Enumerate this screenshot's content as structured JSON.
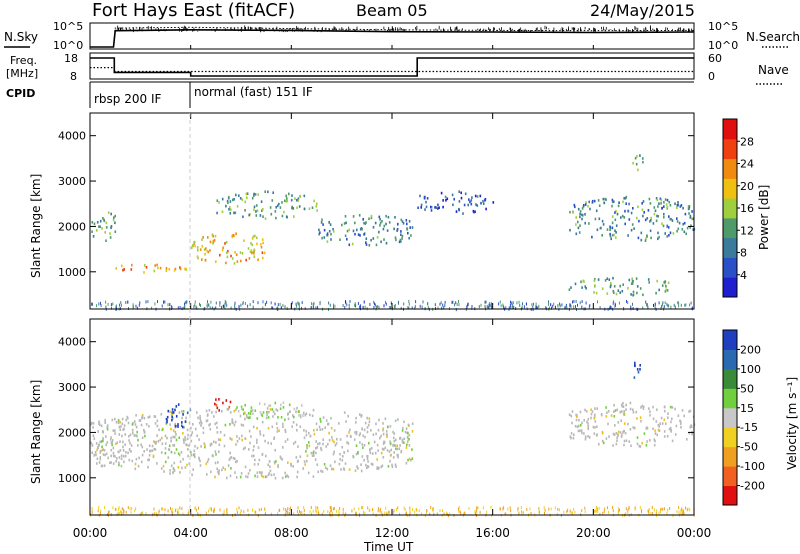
{
  "header": {
    "title": "Fort Hays East (fitACF)",
    "beam": "Beam 05",
    "date": "24/May/2015"
  },
  "strip": {
    "left_labels": [
      "N.Sky",
      "Freq.",
      "[MHz]",
      "CPID"
    ],
    "right_labels": [
      "N.Search",
      "Nave"
    ],
    "noise_ticks_left": [
      "10^5",
      "10^0"
    ],
    "noise_ticks_right": [
      "10^5",
      "10^0"
    ],
    "freq_ticks": [
      "18",
      "8"
    ],
    "nave_ticks": [
      "60",
      "0"
    ],
    "cpid_segments": [
      "rbsp 200 IF",
      "normal (fast) 151 IF"
    ]
  },
  "colors": {
    "power_scale": [
      "#1f1fd0",
      "#2a50c8",
      "#3a7a9a",
      "#4f9a6a",
      "#9fcf3f",
      "#f0c010",
      "#f08a10",
      "#f04010",
      "#e01010"
    ],
    "velocity_scale": [
      "#1f3fc0",
      "#2a6ab0",
      "#3a8a3a",
      "#6fcf3f",
      "#c8c8c8",
      "#f0d020",
      "#f0a020",
      "#f06020",
      "#e01010"
    ],
    "ground_scatter": "#b8b8b8"
  },
  "chart_data": [
    {
      "type": "line",
      "panel": "noise",
      "series": [
        {
          "name": "N.Sky",
          "x": [
            "00:00",
            "00:56",
            "01:00",
            "04:00",
            "08:00",
            "12:00",
            "16:00",
            "20:00",
            "00:00"
          ],
          "y": [
            1,
            1,
            5000,
            8000,
            6000,
            3000,
            2500,
            2000,
            2500
          ]
        },
        {
          "name": "N.Search",
          "x": [
            "00:00",
            "00:56",
            "01:00",
            "04:00",
            "08:00",
            "12:00",
            "16:00",
            "20:00",
            "00:00"
          ],
          "y": [
            1,
            1,
            20000,
            30000,
            15000,
            8000,
            6000,
            5000,
            6000
          ]
        }
      ]
    },
    {
      "type": "line",
      "panel": "freq_nave",
      "series": [
        {
          "name": "Freq.",
          "x": [
            "00:00",
            "00:58",
            "00:58",
            "04:00",
            "04:00",
            "13:00",
            "13:00",
            "00:00"
          ],
          "y": [
            18,
            18,
            10,
            10,
            8,
            8,
            18,
            18
          ]
        },
        {
          "name": "Nave",
          "x": [
            "00:00",
            "00:58",
            "00:58",
            "00:00"
          ],
          "y": [
            28,
            28,
            15,
            15
          ]
        }
      ]
    },
    {
      "type": "heatmap",
      "panel": "power",
      "xlabel": "",
      "ylabel": "Slant Range [km]",
      "xlim": [
        "00:00",
        "00:00"
      ],
      "ylim": [
        180,
        4500
      ],
      "yticks": [
        1000,
        2000,
        3000,
        4000
      ],
      "colorbar_label": "Power [dB]",
      "colorbar_ticks": [
        28,
        24,
        20,
        16,
        12,
        8,
        4
      ],
      "features": [
        {
          "t_start_h": 0.0,
          "t_end_h": 1.0,
          "range_km": [
            1700,
            2400
          ],
          "power_db": 12
        },
        {
          "t_start_h": 1.0,
          "t_end_h": 4.0,
          "range_km": [
            1000,
            1200
          ],
          "power_db": 22
        },
        {
          "t_start_h": 4.0,
          "t_end_h": 7.0,
          "range_km": [
            1200,
            1900
          ],
          "power_db": 20
        },
        {
          "t_start_h": 5.0,
          "t_end_h": 9.0,
          "range_km": [
            2200,
            2800
          ],
          "power_db": 12
        },
        {
          "t_start_h": 9.0,
          "t_end_h": 12.8,
          "range_km": [
            1600,
            2300
          ],
          "power_db": 10
        },
        {
          "t_start_h": 13.0,
          "t_end_h": 16.0,
          "range_km": [
            2300,
            2800
          ],
          "power_db": 6
        },
        {
          "t_start_h": 19.0,
          "t_end_h": 24.0,
          "range_km": [
            1700,
            2700
          ],
          "power_db": 10
        },
        {
          "t_start_h": 19.0,
          "t_end_h": 23.0,
          "range_km": [
            500,
            900
          ],
          "power_db": 12
        },
        {
          "t_start_h": 21.5,
          "t_end_h": 22.0,
          "range_km": [
            3200,
            3600
          ],
          "power_db": 12
        }
      ]
    },
    {
      "type": "heatmap",
      "panel": "velocity",
      "xlabel": "Time UT",
      "ylabel": "Slant Range [km]",
      "xlim": [
        "00:00",
        "00:00"
      ],
      "ylim": [
        180,
        4500
      ],
      "xticks": [
        "00:00",
        "04:00",
        "08:00",
        "12:00",
        "16:00",
        "20:00",
        "00:00"
      ],
      "yticks": [
        1000,
        2000,
        3000,
        4000
      ],
      "colorbar_label": "Velocity [m s⁻¹]",
      "colorbar_ticks": [
        200,
        100,
        50,
        15,
        -15,
        -50,
        -100,
        -200
      ],
      "features": [
        {
          "t_start_h": 0.0,
          "t_end_h": 12.8,
          "range_km": [
            1000,
            2600
          ],
          "velocity_ms": 0,
          "ground_scatter": true
        },
        {
          "t_start_h": 3.0,
          "t_end_h": 4.0,
          "range_km": [
            2100,
            2700
          ],
          "velocity_ms": 200
        },
        {
          "t_start_h": 4.8,
          "t_end_h": 5.6,
          "range_km": [
            2500,
            2800
          ],
          "velocity_ms": -200
        },
        {
          "t_start_h": 5.8,
          "t_end_h": 8.5,
          "range_km": [
            2300,
            2700
          ],
          "velocity_ms": 30
        },
        {
          "t_start_h": 19.0,
          "t_end_h": 24.0,
          "range_km": [
            1700,
            2700
          ],
          "velocity_ms": 0,
          "ground_scatter": true
        },
        {
          "t_start_h": 21.5,
          "t_end_h": 22.0,
          "range_km": [
            3200,
            3600
          ],
          "velocity_ms": 200
        }
      ]
    }
  ]
}
